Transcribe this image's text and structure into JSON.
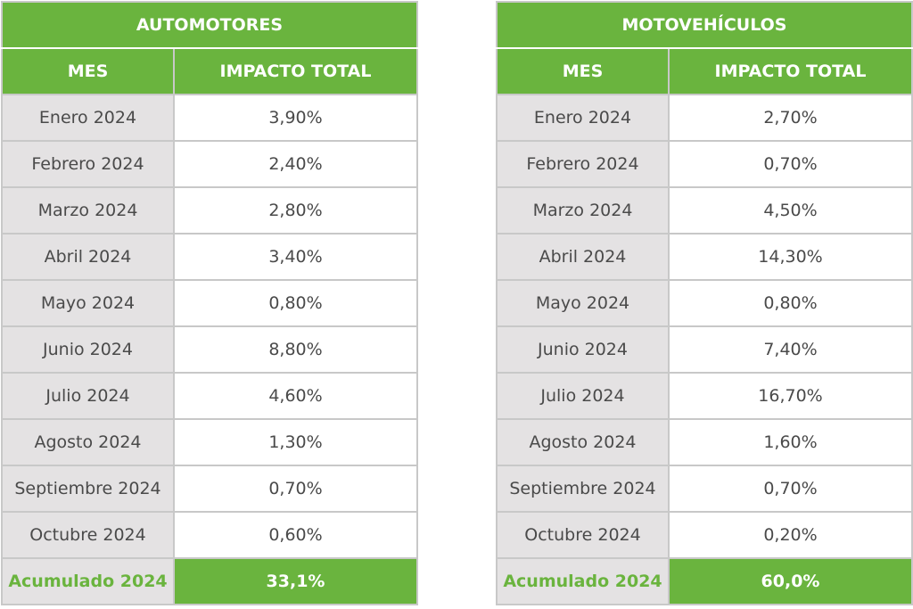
{
  "colors": {
    "green": "#6ab43e",
    "grey_cell": "#e4e2e3",
    "text": "#4a4a4a",
    "border": "#c8c8c8"
  },
  "tables": [
    {
      "title": "AUTOMOTORES",
      "col_mes": "MES",
      "col_impacto": "IMPACTO TOTAL",
      "rows": [
        {
          "mes": "Enero 2024",
          "impacto": "3,90%"
        },
        {
          "mes": "Febrero 2024",
          "impacto": "2,40%"
        },
        {
          "mes": "Marzo 2024",
          "impacto": "2,80%"
        },
        {
          "mes": "Abril 2024",
          "impacto": "3,40%"
        },
        {
          "mes": "Mayo 2024",
          "impacto": "0,80%"
        },
        {
          "mes": "Junio 2024",
          "impacto": "8,80%"
        },
        {
          "mes": "Julio 2024",
          "impacto": "4,60%"
        },
        {
          "mes": "Agosto 2024",
          "impacto": "1,30%"
        },
        {
          "mes": "Septiembre 2024",
          "impacto": "0,70%"
        },
        {
          "mes": "Octubre 2024",
          "impacto": "0,60%"
        }
      ],
      "total_label": "Acumulado 2024",
      "total_value": "33,1%"
    },
    {
      "title": "MOTOVEHÍCULOS",
      "col_mes": "MES",
      "col_impacto": "IMPACTO TOTAL",
      "rows": [
        {
          "mes": "Enero 2024",
          "impacto": "2,70%"
        },
        {
          "mes": "Febrero 2024",
          "impacto": "0,70%"
        },
        {
          "mes": "Marzo 2024",
          "impacto": "4,50%"
        },
        {
          "mes": "Abril 2024",
          "impacto": "14,30%"
        },
        {
          "mes": "Mayo 2024",
          "impacto": "0,80%"
        },
        {
          "mes": "Junio 2024",
          "impacto": "7,40%"
        },
        {
          "mes": "Julio 2024",
          "impacto": "16,70%"
        },
        {
          "mes": "Agosto 2024",
          "impacto": "1,60%"
        },
        {
          "mes": "Septiembre 2024",
          "impacto": "0,70%"
        },
        {
          "mes": "Octubre 2024",
          "impacto": "0,20%"
        }
      ],
      "total_label": "Acumulado 2024",
      "total_value": "60,0%"
    }
  ]
}
